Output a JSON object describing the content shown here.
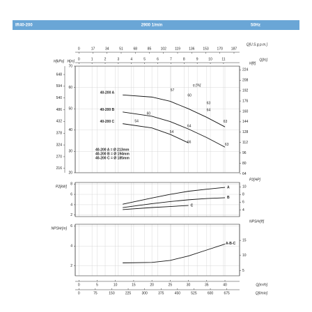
{
  "header": {
    "model": "IR40-200",
    "speed": "2900 1/min",
    "frequency": "50Hz"
  },
  "chart_data": {
    "type": "line",
    "grid": true,
    "x_axes": [
      {
        "label": "Q[U.S.g.p.m.]",
        "lim": [
          -4.4,
          193.73
        ],
        "ticks": [
          0,
          17,
          34,
          51,
          68,
          85,
          102,
          119,
          136,
          153,
          170,
          187
        ]
      },
      {
        "label": "Q[l/s]",
        "lim": [
          -0.278,
          12.222
        ],
        "ticks": [
          0,
          1,
          2,
          3,
          4,
          5,
          6,
          7,
          8,
          9,
          10,
          11
        ]
      },
      {
        "label": "Q[m³/h]",
        "lim": [
          -1,
          44
        ],
        "ticks": [
          0,
          5,
          10,
          15,
          20,
          25,
          30,
          35,
          40
        ]
      },
      {
        "label": "Q[l/min]",
        "lim": [
          -16.67,
          733.33
        ],
        "ticks": [
          0,
          75,
          150,
          225,
          300,
          375,
          450,
          525,
          600,
          675
        ]
      }
    ],
    "panels": [
      {
        "y_axes": [
          {
            "label": "H[kPa]",
            "lim": [
              196.1,
              686.5
            ],
            "ticks": [
              216,
              270,
              324,
              378,
              432,
              486,
              540,
              594,
              648
            ]
          },
          {
            "label": "H[m]",
            "lim": [
              20,
              70
            ],
            "ticks": [
              20,
              30,
              40,
              50,
              60,
              70
            ]
          },
          {
            "label": "H[ft]",
            "lim": [
              65.62,
              229.66
            ],
            "ticks": [
              64,
              80,
              96,
              112,
              128,
              144,
              160,
              176,
              192,
              208,
              224
            ]
          }
        ],
        "series": [
          {
            "name": "40-200 A",
            "color": "#111111",
            "x": [
              12,
              20,
              25,
              30,
              35,
              40
            ],
            "values": [
              56.5,
              55.5,
              53.5,
              50,
              46,
              41.5
            ]
          },
          {
            "name": "40-200 B",
            "color": "#111111",
            "x": [
              12,
              20,
              25,
              30,
              35,
              40
            ],
            "values": [
              48.5,
              46.5,
              44,
              40.5,
              36.5,
              32
            ]
          },
          {
            "name": "40-200 C",
            "color": "#111111",
            "x": [
              12,
              20,
              25,
              30
            ],
            "values": [
              43,
              41,
              38,
              34
            ]
          }
        ],
        "efficiency": {
          "label": "η [%]",
          "label_x": 31.2,
          "label_y": 60.9,
          "points": [
            {
              "value": 57,
              "x": 25.6,
              "y": 58.6
            },
            {
              "value": 60,
              "x": 30.3,
              "y": 56.3
            },
            {
              "value": 63,
              "x": 35.5,
              "y": 52.7
            },
            {
              "value": 64,
              "x": 35.5,
              "y": 49.4
            },
            {
              "value": 63,
              "x": 40.1,
              "y": 43.9
            },
            {
              "value": 60,
              "x": 19.1,
              "y": 47.8
            },
            {
              "value": 54,
              "x": 15.8,
              "y": 44.2
            },
            {
              "value": 54,
              "x": 25.4,
              "y": 39.0
            },
            {
              "value": 64,
              "x": 30.2,
              "y": 41.9
            },
            {
              "value": 66,
              "x": 30.2,
              "y": 34.4
            },
            {
              "value": 63,
              "x": 40.5,
              "y": 33.1
            }
          ]
        },
        "notes": [
          "40-200 A = Ø 213mm",
          "40-200 B = Ø 194mm",
          "40-200 C = Ø 185mm"
        ]
      },
      {
        "y_axes": [
          {
            "label": "P2[kW]",
            "lim": [
              1.7,
              8.3
            ],
            "ticks": [
              2,
              4,
              6,
              8
            ]
          },
          {
            "label": "P2[HP]",
            "lim": [
              2.28,
              11.13
            ],
            "ticks": [
              4,
              6,
              8,
              10
            ]
          }
        ],
        "series": [
          {
            "name": "A",
            "color": "#111111",
            "x": [
              12,
              20,
              25,
              30,
              35,
              40
            ],
            "values": [
              4.1,
              5.3,
              6.0,
              6.6,
              7.0,
              7.35
            ]
          },
          {
            "name": "B",
            "color": "#111111",
            "x": [
              12,
              20,
              25,
              30,
              35,
              40
            ],
            "values": [
              3.45,
              4.2,
              4.6,
              4.95,
              5.2,
              5.35
            ]
          },
          {
            "name": "C",
            "color": "#111111",
            "x": [
              12,
              20,
              25,
              30
            ],
            "values": [
              3.05,
              3.45,
              3.65,
              3.85
            ]
          }
        ]
      },
      {
        "y_axes": [
          {
            "label": "NPSHr[m]",
            "lim": [
              1.0,
              6.2
            ],
            "ticks": [
              2,
              4,
              6
            ]
          },
          {
            "label": "NPSHr[ft]",
            "lim": [
              3.28,
              20.34
            ],
            "ticks": [
              5,
              10,
              15
            ]
          }
        ],
        "series": [
          {
            "name": "A-B-C",
            "color": "#111111",
            "x": [
              12,
              20,
              25,
              30,
              35,
              40
            ],
            "values": [
              2.3,
              2.35,
              2.55,
              3.0,
              3.6,
              4.2
            ]
          }
        ]
      }
    ]
  }
}
